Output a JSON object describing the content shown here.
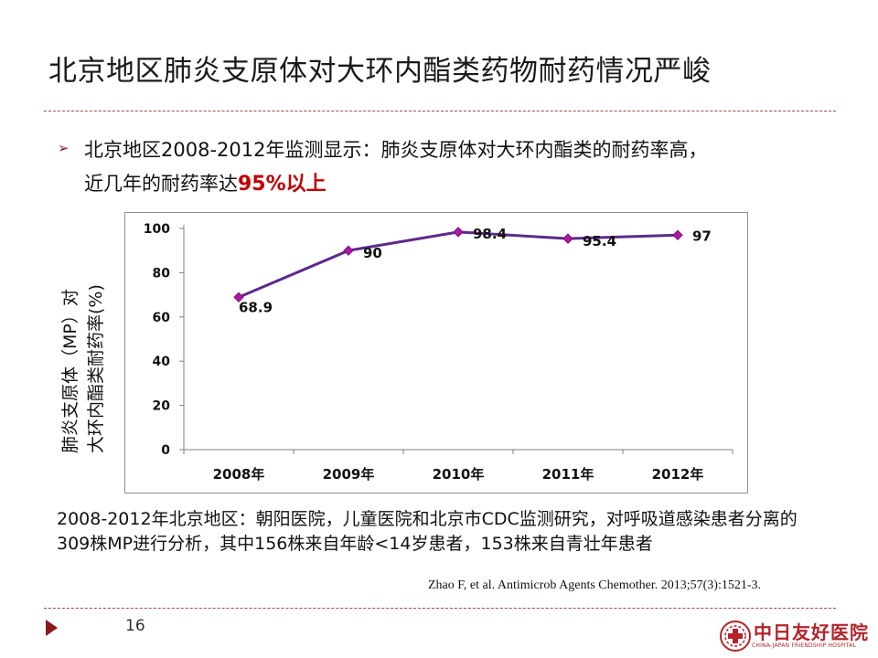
{
  "slide": {
    "title": "北京地区肺炎支原体对大环内酯类药物耐药情况严峻",
    "summary_line1": "北京地区2008-2012年监测显示：肺炎支原体对大环内酯类的耐药率高，",
    "summary_line2_plain": "近几年的耐药率达",
    "summary_line2_emphasis": "95%以上",
    "note": "2008-2012年北京地区：朝阳医院，儿童医院和北京市CDC监测研究，对呼吸道感染患者分离的309株MP进行分析，其中156株来自年龄<14岁患者，153株来自青壮年患者",
    "citation": "Zhao F, et al. Antimicrob Agents Chemother. 2013;57(3):1521-3.",
    "page_number": "16",
    "logo_name": "中日友好医院",
    "logo_subtitle": "CHINA-JAPAN FRIENDSHIP HOSPITAL"
  },
  "chart_data": {
    "type": "line",
    "categories": [
      "2008年",
      "2009年",
      "2010年",
      "2011年",
      "2012年"
    ],
    "series": [
      {
        "values": [
          68.9,
          90,
          98.4,
          95.4,
          97
        ]
      }
    ],
    "data_labels": [
      "68.9",
      "90",
      "98.4",
      "95.4",
      "97"
    ],
    "ylabel_line1": "肺炎支原体（MP）对",
    "ylabel_line2": "大环内酯类耐药率(%)",
    "ylim": [
      0,
      100
    ],
    "yticks": [
      0,
      20,
      40,
      60,
      80,
      100
    ],
    "grid": false,
    "legend": "none",
    "colors": {
      "line": "#5b2a8c",
      "marker": "#b01aa0"
    }
  }
}
